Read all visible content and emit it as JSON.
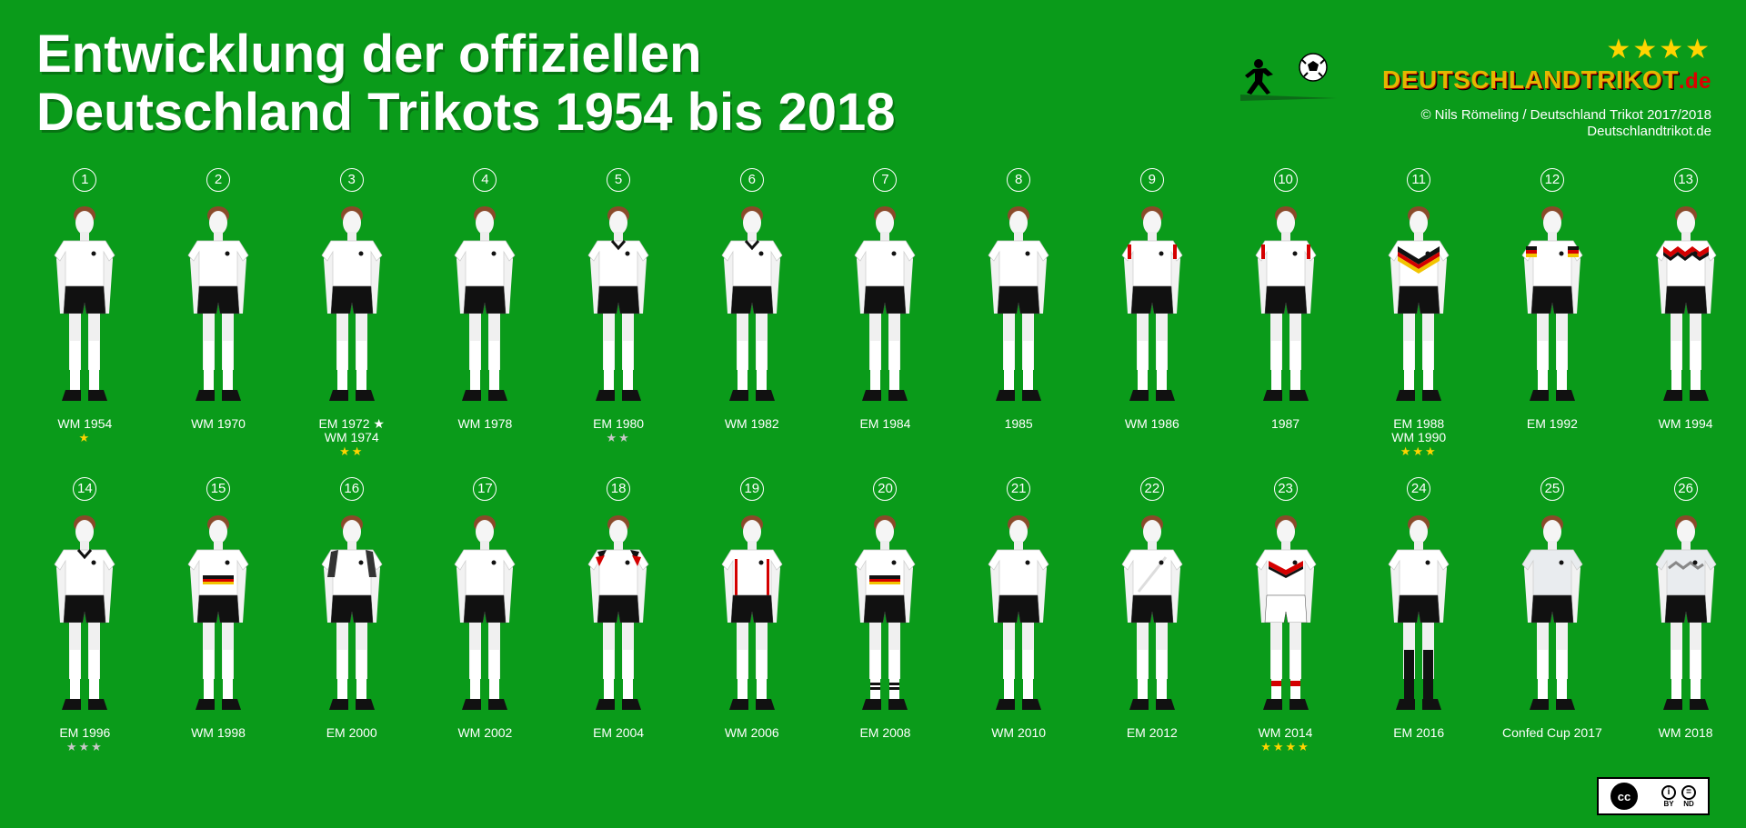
{
  "title": {
    "line1": "Entwicklung der offiziellen",
    "line2": "Deutschland Trikots 1954 bis 2018"
  },
  "brand": {
    "stars": "★★★★",
    "logo_main": "DEUTSCHLANDTRIKOT",
    "logo_tld": ".de",
    "copyright_line1": "© Nils Römeling / Deutschland Trikot 2017/2018",
    "copyright_line2": "Deutschlandtrikot.de",
    "icons": [
      "soccer-ball-icon",
      "runner-silhouette-icon"
    ]
  },
  "colors": {
    "background": "#0a9b1a",
    "star_gold": "#ffd400",
    "star_silver": "#c8c8c8",
    "shirt_white": "#ffffff",
    "shorts_black": "#111111",
    "accent_red": "#d40000",
    "accent_yellow": "#f2c400"
  },
  "kits": [
    {
      "num": "1",
      "label": "WM 1954",
      "stars": "★",
      "star_color": "gold",
      "shorts": "black",
      "trim": "none",
      "shirt": "white",
      "socks": "white"
    },
    {
      "num": "2",
      "label": "WM 1970",
      "stars": "",
      "star_color": "",
      "shorts": "black",
      "trim": "none",
      "shirt": "white",
      "socks": "white"
    },
    {
      "num": "3",
      "label": "EM 1972 ★\nWM 1974",
      "stars": "★★",
      "star_color": "gold",
      "shorts": "black",
      "trim": "none",
      "shirt": "white",
      "socks": "white"
    },
    {
      "num": "4",
      "label": "WM 1978",
      "stars": "",
      "star_color": "",
      "shorts": "black",
      "trim": "none",
      "shirt": "white",
      "socks": "white"
    },
    {
      "num": "5",
      "label": "EM 1980",
      "stars": "★★",
      "star_color": "silver",
      "shorts": "black",
      "trim": "collar",
      "shirt": "white",
      "socks": "white"
    },
    {
      "num": "6",
      "label": "WM 1982",
      "stars": "",
      "star_color": "",
      "shorts": "black",
      "trim": "collar",
      "shirt": "white",
      "socks": "white"
    },
    {
      "num": "7",
      "label": "EM 1984",
      "stars": "",
      "star_color": "",
      "shorts": "black",
      "trim": "none",
      "shirt": "white",
      "socks": "white"
    },
    {
      "num": "8",
      "label": "1985",
      "stars": "",
      "star_color": "",
      "shorts": "black",
      "trim": "none",
      "shirt": "white",
      "socks": "white"
    },
    {
      "num": "9",
      "label": "WM 1986",
      "stars": "",
      "star_color": "",
      "shorts": "black",
      "trim": "sleeve-stripe",
      "shirt": "white",
      "socks": "white"
    },
    {
      "num": "10",
      "label": "1987",
      "stars": "",
      "star_color": "",
      "shorts": "black",
      "trim": "sleeve-stripe",
      "shirt": "white",
      "socks": "white"
    },
    {
      "num": "11",
      "label": "EM 1988\nWM 1990",
      "stars": "★★★",
      "star_color": "gold",
      "shorts": "black",
      "trim": "chest-flag",
      "shirt": "white",
      "socks": "white"
    },
    {
      "num": "12",
      "label": "EM 1992",
      "stars": "",
      "star_color": "",
      "shorts": "black",
      "trim": "sleeve-flag",
      "shirt": "white",
      "socks": "white"
    },
    {
      "num": "13",
      "label": "WM 1994",
      "stars": "",
      "star_color": "",
      "shorts": "black",
      "trim": "diamond-flag",
      "shirt": "white",
      "socks": "white"
    },
    {
      "num": "14",
      "label": "EM 1996",
      "stars": "★★★",
      "star_color": "silver",
      "shorts": "black",
      "trim": "collar",
      "shirt": "white",
      "socks": "white"
    },
    {
      "num": "15",
      "label": "WM 1998",
      "stars": "",
      "star_color": "",
      "shorts": "black",
      "trim": "chest-band",
      "shirt": "white",
      "socks": "white"
    },
    {
      "num": "16",
      "label": "EM 2000",
      "stars": "",
      "star_color": "",
      "shorts": "black",
      "trim": "shoulder-dark",
      "shirt": "white",
      "socks": "white"
    },
    {
      "num": "17",
      "label": "WM 2002",
      "stars": "",
      "star_color": "",
      "shorts": "black",
      "trim": "none",
      "shirt": "white",
      "socks": "white"
    },
    {
      "num": "18",
      "label": "EM 2004",
      "stars": "",
      "star_color": "",
      "shorts": "black",
      "trim": "shoulder-flag",
      "shirt": "white",
      "socks": "white"
    },
    {
      "num": "19",
      "label": "WM 2006",
      "stars": "",
      "star_color": "",
      "shorts": "black",
      "trim": "side-stripe",
      "shirt": "white",
      "socks": "white"
    },
    {
      "num": "20",
      "label": "EM 2008",
      "stars": "",
      "star_color": "",
      "shorts": "black",
      "trim": "chest-band",
      "shirt": "white",
      "socks": "striped"
    },
    {
      "num": "21",
      "label": "WM 2010",
      "stars": "",
      "star_color": "",
      "shorts": "black",
      "trim": "none",
      "shirt": "white",
      "socks": "white"
    },
    {
      "num": "22",
      "label": "EM 2012",
      "stars": "",
      "star_color": "",
      "shorts": "black",
      "trim": "diagonal",
      "shirt": "white",
      "socks": "white"
    },
    {
      "num": "23",
      "label": "WM 2014",
      "stars": "★★★★",
      "star_color": "gold",
      "shorts": "white",
      "trim": "chest-v",
      "shirt": "white",
      "socks": "striped-red"
    },
    {
      "num": "24",
      "label": "EM 2016",
      "stars": "",
      "star_color": "",
      "shorts": "black",
      "trim": "none",
      "shirt": "white",
      "socks": "black"
    },
    {
      "num": "25",
      "label": "Confed Cup 2017",
      "stars": "",
      "star_color": "",
      "shorts": "black",
      "trim": "none",
      "shirt": "light",
      "socks": "white"
    },
    {
      "num": "26",
      "label": "WM 2018",
      "stars": "",
      "star_color": "",
      "shorts": "black",
      "trim": "zigzag",
      "shirt": "light",
      "socks": "white"
    }
  ],
  "license": {
    "badge": "cc",
    "items": [
      "BY",
      "ND"
    ]
  }
}
